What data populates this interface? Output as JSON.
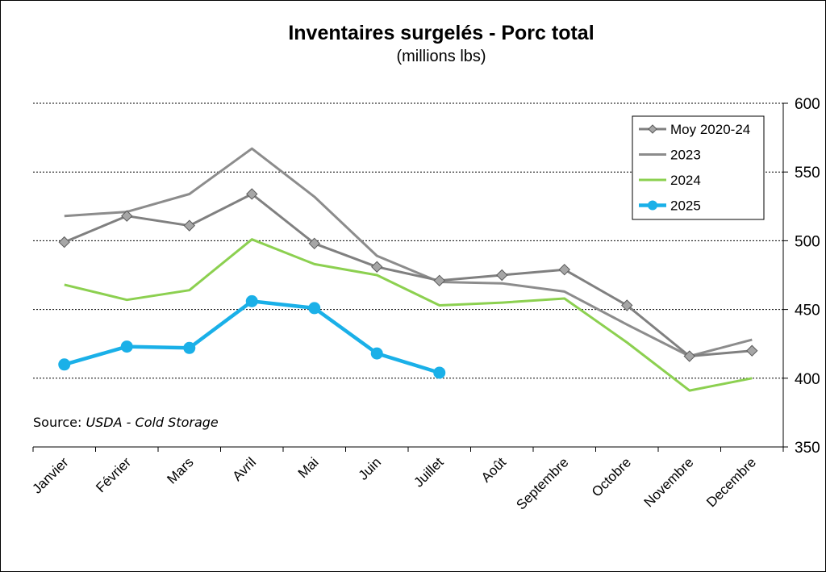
{
  "chart_data": {
    "type": "line",
    "title": "Inventaires surgelés - Porc total",
    "subtitle": "(millions lbs)",
    "categories": [
      "Janvier",
      "Février",
      "Mars",
      "Avril",
      "Mai",
      "Juin",
      "Juillet",
      "Août",
      "Septembre",
      "Octobre",
      "Novembre",
      "Decembre"
    ],
    "y_axis": {
      "position": "right",
      "ylim": [
        350,
        600
      ],
      "ticks": [
        350,
        400,
        450,
        500,
        550,
        600
      ]
    },
    "grid": {
      "horizontal": true,
      "style": "dotted"
    },
    "legend": {
      "placement": "top-right"
    },
    "series": [
      {
        "name": "Moy 2020-24",
        "color": "#808080",
        "marker": "diamond",
        "values": [
          499,
          518,
          511,
          534,
          498,
          481,
          471,
          475,
          479,
          453,
          416,
          420
        ]
      },
      {
        "name": "2023",
        "color": "#8c8c8c",
        "marker": "none",
        "values": [
          518,
          521,
          534,
          567,
          532,
          489,
          470,
          469,
          463,
          439,
          416,
          428
        ]
      },
      {
        "name": "2024",
        "color": "#8cd050",
        "marker": "none",
        "values": [
          468,
          457,
          464,
          501,
          483,
          475,
          453,
          455,
          458,
          426,
          391,
          400
        ]
      },
      {
        "name": "2025",
        "color": "#1ab0e8",
        "marker": "circle",
        "values": [
          410,
          423,
          422,
          456,
          451,
          418,
          404,
          null,
          null,
          null,
          null,
          null
        ]
      }
    ],
    "annotation": {
      "prefix": "Source: ",
      "emphasis": "USDA - Cold Storage"
    }
  }
}
